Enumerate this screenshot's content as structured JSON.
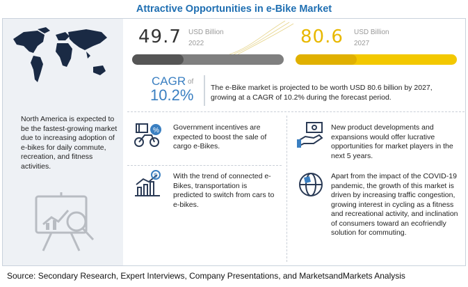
{
  "title": "Attractive Opportunities in e-Bike Market",
  "market_2022": {
    "value": "49.7",
    "unit": "USD Billion",
    "year": "2022"
  },
  "market_2027": {
    "value": "80.6",
    "unit": "USD Billion",
    "year": "2027"
  },
  "cagr": {
    "label": "CAGR",
    "of": "of",
    "value": "10.2%"
  },
  "summary": "The e-Bike market is projected to be worth USD 80.6 billion by 2027, growing at a CAGR of 10.2% during the forecast period.",
  "left_panel": {
    "text": "North America is expected to be the fastest-growing market due to increasing adoption of e-bikes for daily commute, recreation, and fitness activities."
  },
  "opportunities": [
    {
      "icon": "cargo-bike-icon",
      "text": "Government incentives are expected to boost the sale of cargo e-Bikes."
    },
    {
      "icon": "growth-chart-icon",
      "text": "With the trend of connected e-Bikes, transportation is predicted to switch from cars to e-bikes."
    },
    {
      "icon": "product-development-icon",
      "text": "New product developments and expansions would offer lucrative opportunities for market players in the next 5 years."
    },
    {
      "icon": "globe-icon",
      "text": "Apart from the impact of the COVID-19 pandemic, the growth of this market is driven by increasing traffic congestion, growing interest in cycling as a fitness and recreational activity, and inclination of consumers toward an ecofriendly solution for commuting."
    }
  ],
  "source": "Source: Secondary Research, Expert Interviews, Company Presentations, and MarketsandMarkets Analysis",
  "colors": {
    "title": "#1f6fb2",
    "accent_yellow": "#f3c800",
    "cagr_blue": "#3a7fc1",
    "bar_grey": "#7f7f7f"
  },
  "progress": {
    "bar_2022_fill_fraction": 0.34,
    "bar_2027_fill_fraction": 0.38
  }
}
